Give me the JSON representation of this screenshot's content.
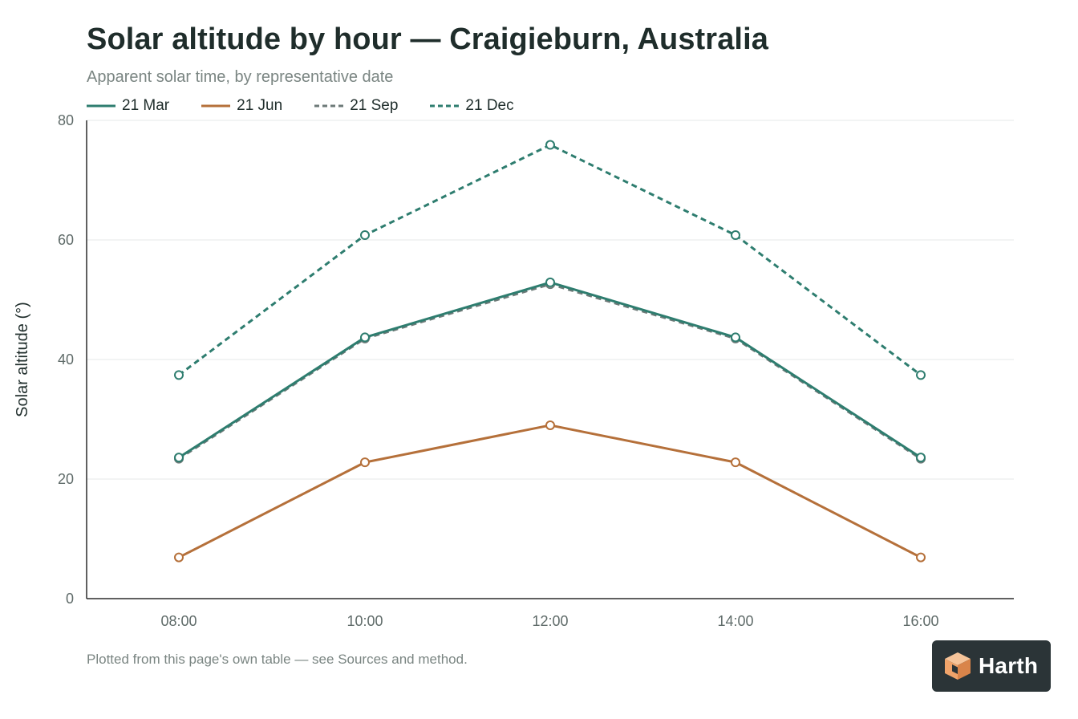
{
  "chart_data": {
    "type": "line",
    "title": "Solar altitude by hour — Craigieburn, Australia",
    "subtitle": "Apparent solar time, by representative date",
    "ylabel": "Solar altitude (°)",
    "xlabel": "",
    "categories": [
      "08:00",
      "10:00",
      "12:00",
      "14:00",
      "16:00"
    ],
    "yticks": [
      "0",
      "20",
      "40",
      "60",
      "80"
    ],
    "ylim": [
      0,
      80
    ],
    "grid": "horizontal",
    "legend_position": "top-left",
    "series": [
      {
        "name": "21 Mar",
        "values": [
          23.6,
          43.7,
          52.9,
          43.7,
          23.6
        ],
        "color": "#2e7d6f",
        "dash": "solid"
      },
      {
        "name": "21 Jun",
        "values": [
          6.9,
          22.8,
          29.0,
          22.8,
          6.9
        ],
        "color": "#b5703a",
        "dash": "solid"
      },
      {
        "name": "21 Sep",
        "values": [
          23.4,
          43.5,
          52.6,
          43.5,
          23.4
        ],
        "color": "#6d7a78",
        "dash": "dashed"
      },
      {
        "name": "21 Dec",
        "values": [
          37.4,
          60.8,
          75.9,
          60.8,
          37.4
        ],
        "color": "#2e7d6f",
        "dash": "dashed"
      }
    ]
  },
  "footnote": "Plotted from this page's own table — see Sources and method.",
  "logo": {
    "text": "Harth",
    "icon": "cube-icon",
    "background": "#2b3437",
    "accent": "#f0a36a"
  }
}
